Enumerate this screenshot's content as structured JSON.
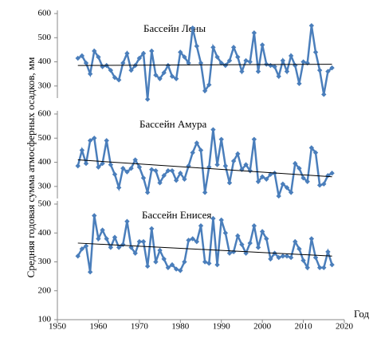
{
  "chart_data": [
    {
      "type": "line",
      "title": "Бассейн Лены",
      "color": "#4a7ebb",
      "xlim": [
        1950,
        2020
      ],
      "ylim": [
        250,
        600
      ],
      "yticks": [
        300,
        400,
        500,
        600
      ],
      "x": [
        1955,
        1956,
        1957,
        1958,
        1959,
        1960,
        1961,
        1962,
        1963,
        1964,
        1965,
        1966,
        1967,
        1968,
        1969,
        1970,
        1971,
        1972,
        1973,
        1974,
        1975,
        1976,
        1977,
        1978,
        1979,
        1980,
        1981,
        1982,
        1983,
        1984,
        1985,
        1986,
        1987,
        1988,
        1989,
        1990,
        1991,
        1992,
        1993,
        1994,
        1995,
        1996,
        1997,
        1998,
        1999,
        2000,
        2001,
        2002,
        2003,
        2004,
        2005,
        2006,
        2007,
        2008,
        2009,
        2010,
        2011,
        2012,
        2013,
        2014,
        2015,
        2016,
        2017
      ],
      "values": [
        415,
        425,
        395,
        350,
        445,
        420,
        380,
        385,
        365,
        335,
        325,
        395,
        435,
        365,
        385,
        415,
        435,
        245,
        445,
        345,
        330,
        355,
        385,
        340,
        330,
        440,
        420,
        395,
        540,
        465,
        395,
        280,
        305,
        460,
        420,
        395,
        385,
        405,
        460,
        420,
        360,
        405,
        400,
        520,
        360,
        470,
        390,
        385,
        380,
        340,
        405,
        360,
        425,
        385,
        310,
        400,
        395,
        550,
        440,
        365,
        265,
        360,
        375
      ],
      "trend": {
        "x": [
          1955,
          2017
        ],
        "values": [
          385,
          390
        ]
      }
    },
    {
      "type": "line",
      "title": "Бассейн Амура",
      "color": "#4a7ebb",
      "xlim": [
        1950,
        2020
      ],
      "ylim": [
        250,
        600
      ],
      "yticks": [
        300,
        400,
        500,
        600
      ],
      "ylabel": "Средняя годовая сумма атмосферных осадков, мм",
      "x": [
        1955,
        1956,
        1957,
        1958,
        1959,
        1960,
        1961,
        1962,
        1963,
        1964,
        1965,
        1966,
        1967,
        1968,
        1969,
        1970,
        1971,
        1972,
        1973,
        1974,
        1975,
        1976,
        1977,
        1978,
        1979,
        1980,
        1981,
        1982,
        1983,
        1984,
        1985,
        1986,
        1987,
        1988,
        1989,
        1990,
        1991,
        1992,
        1993,
        1994,
        1995,
        1996,
        1997,
        1998,
        1999,
        2000,
        2001,
        2002,
        2003,
        2004,
        2005,
        2006,
        2007,
        2008,
        2009,
        2010,
        2011,
        2012,
        2013,
        2014,
        2015,
        2016,
        2017
      ],
      "values": [
        385,
        450,
        395,
        490,
        500,
        380,
        395,
        490,
        390,
        350,
        295,
        375,
        360,
        375,
        410,
        380,
        335,
        275,
        370,
        365,
        315,
        345,
        365,
        365,
        325,
        355,
        330,
        385,
        440,
        480,
        450,
        275,
        380,
        535,
        390,
        495,
        385,
        315,
        405,
        435,
        370,
        390,
        365,
        495,
        320,
        340,
        330,
        350,
        355,
        260,
        310,
        295,
        275,
        395,
        375,
        335,
        320,
        460,
        440,
        305,
        310,
        345,
        355
      ],
      "trend": {
        "x": [
          1955,
          2017
        ],
        "values": [
          410,
          340
        ]
      }
    },
    {
      "type": "line",
      "title": "Бассейн Енисея",
      "color": "#4a7ebb",
      "xlim": [
        1950,
        2020
      ],
      "ylim": [
        100,
        500
      ],
      "yticks": [
        100,
        200,
        300,
        400,
        500
      ],
      "xticks": [
        1950,
        1960,
        1970,
        1980,
        1990,
        2000,
        2010,
        2020
      ],
      "xlabel": "Год",
      "x": [
        1955,
        1956,
        1957,
        1958,
        1959,
        1960,
        1961,
        1962,
        1963,
        1964,
        1965,
        1966,
        1967,
        1968,
        1969,
        1970,
        1971,
        1972,
        1973,
        1974,
        1975,
        1976,
        1977,
        1978,
        1979,
        1980,
        1981,
        1982,
        1983,
        1984,
        1985,
        1986,
        1987,
        1988,
        1989,
        1990,
        1991,
        1992,
        1993,
        1994,
        1995,
        1996,
        1997,
        1998,
        1999,
        2000,
        2001,
        2002,
        2003,
        2004,
        2005,
        2006,
        2007,
        2008,
        2009,
        2010,
        2011,
        2012,
        2013,
        2014,
        2015,
        2016,
        2017
      ],
      "values": [
        320,
        345,
        355,
        265,
        460,
        380,
        410,
        380,
        350,
        385,
        350,
        360,
        440,
        350,
        330,
        370,
        370,
        285,
        415,
        300,
        340,
        310,
        280,
        290,
        275,
        270,
        300,
        375,
        380,
        370,
        425,
        300,
        295,
        450,
        290,
        445,
        400,
        330,
        335,
        390,
        360,
        330,
        365,
        425,
        350,
        405,
        380,
        310,
        330,
        315,
        320,
        320,
        315,
        370,
        345,
        305,
        280,
        380,
        315,
        280,
        280,
        335,
        290
      ],
      "trend": {
        "x": [
          1955,
          2017
        ],
        "values": [
          365,
          320
        ]
      }
    }
  ]
}
